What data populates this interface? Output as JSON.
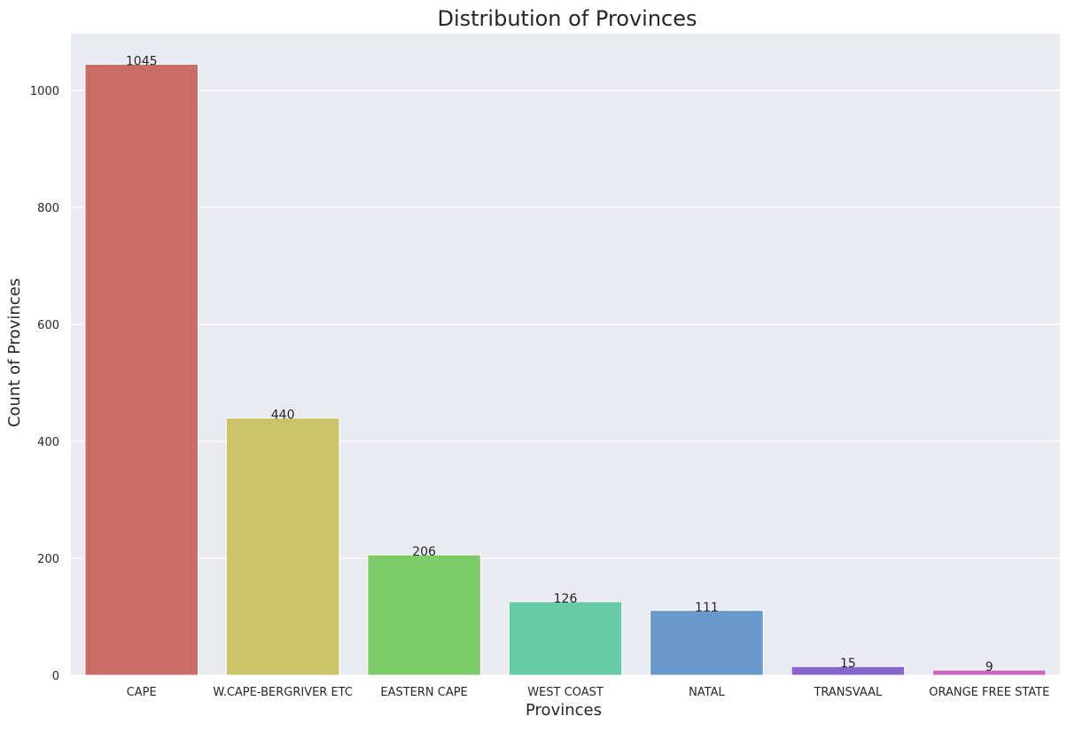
{
  "chart_data": {
    "type": "bar",
    "title": "Distribution of Provinces",
    "xlabel": "Provinces",
    "ylabel": "Count of Provinces",
    "categories": [
      "CAPE",
      "W.CAPE-BERGRIVER ETC",
      "EASTERN CAPE",
      "WEST COAST",
      "NATAL",
      "TRANSVAAL",
      "ORANGE FREE STATE"
    ],
    "values": [
      1045,
      440,
      206,
      126,
      111,
      15,
      9
    ],
    "colors": [
      "#c96e66",
      "#cbc36a",
      "#7dcc69",
      "#68cba6",
      "#6899cc",
      "#8766cc",
      "#cc66bf"
    ],
    "yticks": [
      0,
      200,
      400,
      600,
      800,
      1000
    ],
    "ylim": [
      0,
      1097.25
    ],
    "grid": true,
    "background": "#eaeaf2"
  }
}
